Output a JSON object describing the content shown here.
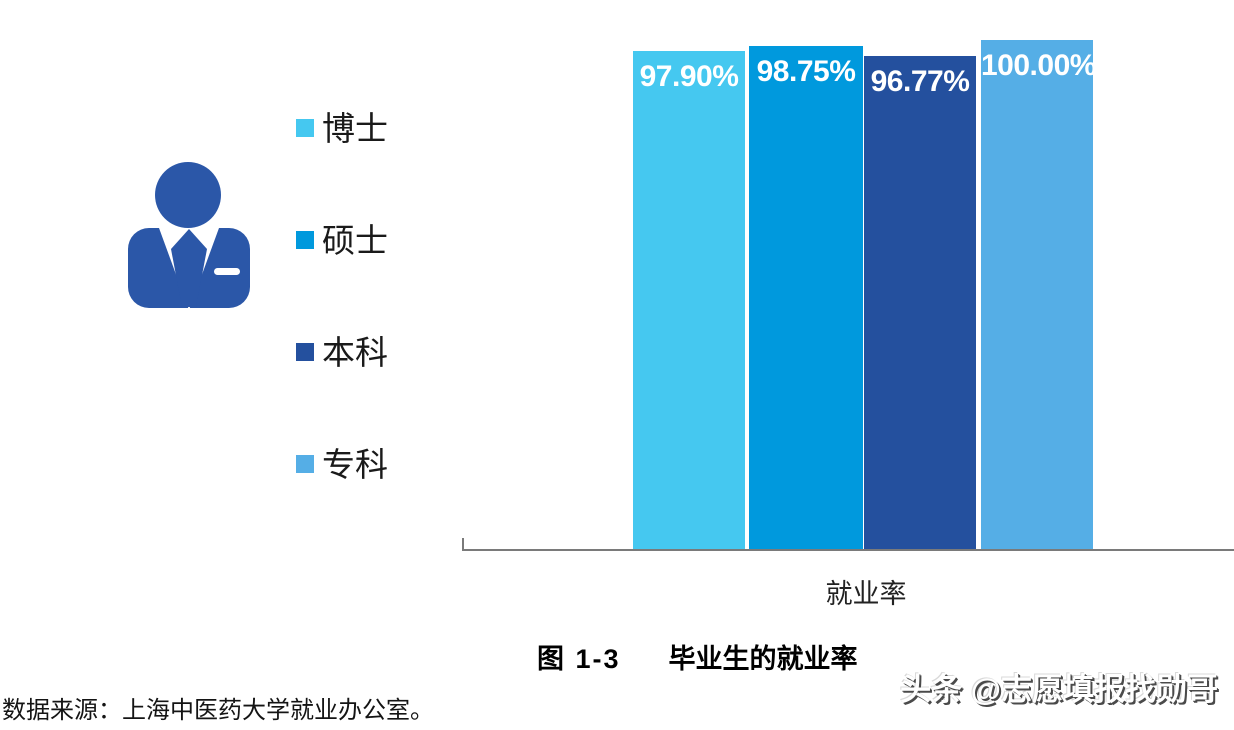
{
  "chart_data": {
    "type": "bar",
    "categories": [
      "博士",
      "硕士",
      "本科",
      "专科"
    ],
    "values": [
      97.9,
      98.75,
      96.77,
      100.0
    ],
    "value_labels": [
      "97.90%",
      "98.75%",
      "96.77%",
      "100.00%"
    ],
    "bar_colors": [
      "#45c8f0",
      "#0099dd",
      "#24509e",
      "#55aee6"
    ],
    "xlabel": "就业率",
    "ylim": [
      0,
      100
    ],
    "grid": false,
    "legend_position": "left",
    "title": "图 1-3 毕业生的就业率"
  },
  "caption": {
    "figure_label": "图 1-3",
    "title": "毕业生的就业率"
  },
  "source_note": {
    "text": "数据来源：上海中医药大学就业办公室。"
  },
  "watermark": {
    "text": "头条 @志愿填报找勋哥"
  },
  "icon": {
    "name": "businessman",
    "color": "#2b57a8"
  }
}
